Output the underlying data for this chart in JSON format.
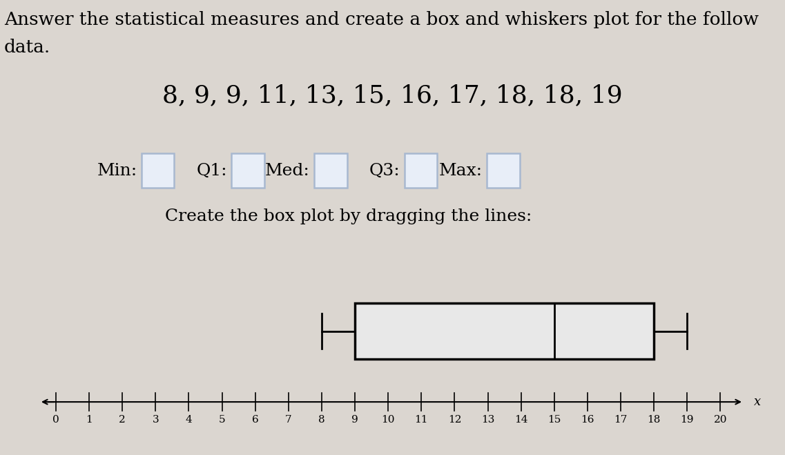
{
  "title_line1": "Answer the statistical measures and create a box and whiskers plot for the follow",
  "title_line2": "data.",
  "data_label": "8, 9, 9, 11, 13, 15, 16, 17, 18, 18, 19",
  "min": 8,
  "q1": 9,
  "median": 15,
  "q3": 18,
  "max": 19,
  "axis_min": 0,
  "axis_max": 20,
  "background_color": "#dbd6d0",
  "box_facecolor": "#e8e8e8",
  "box_edgecolor": "#000000",
  "line_color": "#000000",
  "text_color": "#000000",
  "input_box_color": "#a8b8d0",
  "input_box_face": "#e8eef8",
  "title_fontsize": 19,
  "data_fontsize": 26,
  "label_fontsize": 18,
  "axis_fontsize": 11
}
